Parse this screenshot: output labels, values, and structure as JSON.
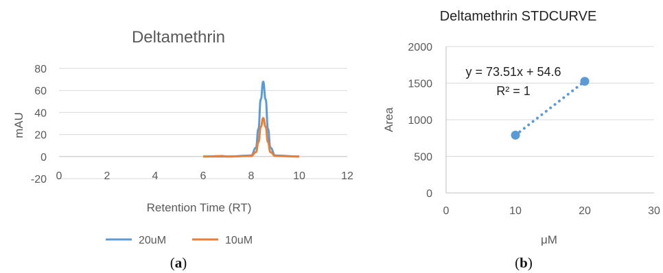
{
  "chart_data": [
    {
      "type": "line",
      "title": "Deltamethrin",
      "xlabel": "Retention Time (RT)",
      "ylabel": "mAU",
      "xlim": [
        0,
        12
      ],
      "ylim": [
        -20,
        80
      ],
      "xticks": [
        "0",
        "2",
        "4",
        "6",
        "8",
        "10",
        "12"
      ],
      "yticks": [
        "80",
        "60",
        "40",
        "20",
        "0",
        "-20"
      ],
      "grid": "horizontal",
      "legend": "bottom",
      "series": [
        {
          "name": "20uM",
          "color": "#5b9bd5",
          "x": [
            6.0,
            7.0,
            8.0,
            8.2,
            8.3,
            8.4,
            8.5,
            8.6,
            8.7,
            8.8,
            9.0,
            10.0
          ],
          "y": [
            0,
            0,
            1,
            8,
            25,
            52,
            68,
            52,
            25,
            8,
            1,
            0
          ]
        },
        {
          "name": "10uM",
          "color": "#ed7d31",
          "x": [
            6.0,
            6.8,
            7.0,
            8.0,
            8.2,
            8.3,
            8.4,
            8.5,
            8.6,
            8.7,
            8.8,
            9.0,
            10.0
          ],
          "y": [
            0,
            0.5,
            0,
            0.5,
            4,
            13,
            27,
            35,
            27,
            13,
            4,
            0.5,
            0
          ]
        }
      ]
    },
    {
      "type": "scatter",
      "title": "Deltamethrin STDCURVE",
      "xlabel": "μM",
      "ylabel": "Area",
      "xlim": [
        0,
        30
      ],
      "ylim": [
        0,
        2000
      ],
      "xticks": [
        "0",
        "10",
        "20",
        "30"
      ],
      "yticks": [
        "2000",
        "1500",
        "1000",
        "500",
        "0"
      ],
      "grid": "horizontal",
      "points": [
        {
          "x": 10,
          "y": 790
        },
        {
          "x": 20,
          "y": 1525
        }
      ],
      "color": "#5b9bd5",
      "trendline": {
        "slope": 73.51,
        "intercept": 54.6,
        "style": "dotted"
      },
      "equation_label": "y = 73.51x + 54.6",
      "r2_label": "R² = 1"
    }
  ],
  "captions": {
    "a_open": "(",
    "a_letter": "a",
    "a_close": ")",
    "b_open": "(",
    "b_letter": "b",
    "b_close": ")"
  }
}
